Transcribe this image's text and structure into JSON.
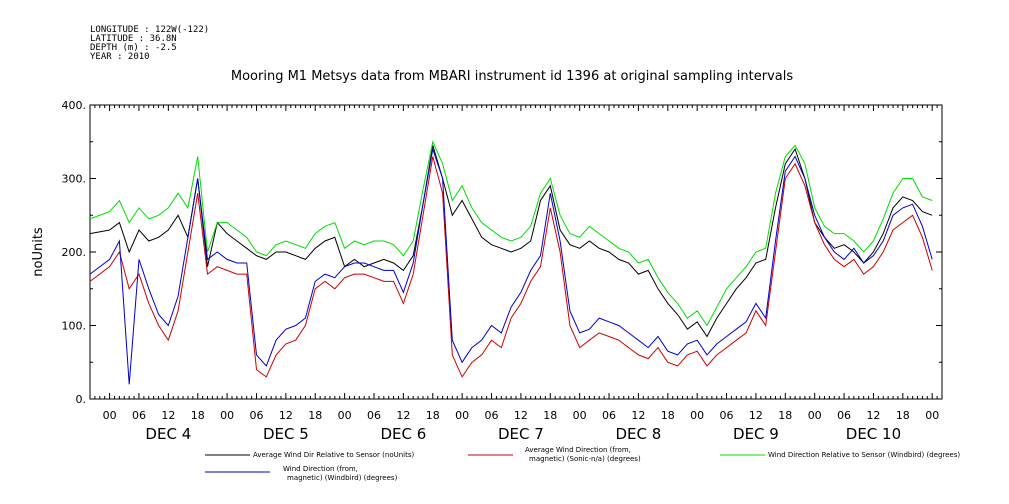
{
  "header": {
    "longitude": "LONGITUDE : 122W(-122)",
    "latitude": "LATITUDE : 36.8N",
    "depth": "DEPTH (m) : -2.5",
    "year": "YEAR : 2010"
  },
  "chart_data": {
    "type": "line",
    "title": "Mooring M1 Metsys data from MBARI instrument id 1396 at original sampling intervals",
    "ylabel": "noUnits",
    "ylim": [
      0,
      400
    ],
    "yticks": [
      "0.",
      "100.",
      "200.",
      "300.",
      "400."
    ],
    "ytick_values": [
      0,
      100,
      200,
      300,
      400
    ],
    "xlim_hours": [
      -4,
      170
    ],
    "hour_ticks": [
      "00",
      "06",
      "12",
      "18"
    ],
    "day_labels": [
      "DEC  4",
      "DEC  5",
      "DEC  6",
      "DEC  7",
      "DEC  8",
      "DEC  9",
      "DEC 10"
    ],
    "grid": false,
    "series": [
      {
        "name": "Average Wind Dir Relative to Sensor (noUnits)",
        "color": "#000000",
        "x": [
          -4,
          0,
          2,
          4,
          6,
          8,
          10,
          12,
          14,
          16,
          18,
          20,
          22,
          24,
          26,
          28,
          30,
          32,
          34,
          36,
          38,
          40,
          42,
          44,
          46,
          48,
          50,
          52,
          54,
          56,
          58,
          60,
          62,
          64,
          66,
          68,
          70,
          72,
          74,
          76,
          78,
          80,
          82,
          84,
          86,
          88,
          90,
          92,
          94,
          96,
          98,
          100,
          102,
          104,
          106,
          108,
          110,
          112,
          114,
          116,
          118,
          120,
          122,
          124,
          126,
          128,
          130,
          132,
          134,
          136,
          138,
          140,
          142,
          144,
          146,
          148,
          150,
          152,
          154,
          156,
          158,
          160,
          162,
          164,
          166,
          168
        ],
        "values": [
          225,
          230,
          240,
          200,
          230,
          215,
          220,
          230,
          250,
          220,
          300,
          180,
          240,
          225,
          215,
          205,
          195,
          190,
          200,
          200,
          195,
          190,
          205,
          215,
          220,
          180,
          190,
          180,
          185,
          190,
          185,
          175,
          195,
          265,
          345,
          300,
          250,
          270,
          245,
          220,
          210,
          205,
          200,
          205,
          215,
          270,
          290,
          230,
          210,
          205,
          215,
          205,
          200,
          190,
          185,
          170,
          175,
          150,
          130,
          115,
          95,
          105,
          85,
          110,
          130,
          150,
          165,
          185,
          190,
          260,
          320,
          340,
          300,
          240,
          220,
          205,
          210,
          200,
          185,
          200,
          225,
          260,
          275,
          270,
          255,
          250
        ]
      },
      {
        "name": "Average Wind Direction (from, magnetic) (Sonic-n/a) (degrees)",
        "color": "#cc0000",
        "x": [
          -4,
          0,
          2,
          4,
          6,
          8,
          10,
          12,
          14,
          16,
          18,
          20,
          22,
          24,
          26,
          28,
          30,
          32,
          34,
          36,
          38,
          40,
          42,
          44,
          46,
          48,
          50,
          52,
          54,
          56,
          58,
          60,
          62,
          64,
          66,
          68,
          70,
          72,
          74,
          76,
          78,
          80,
          82,
          84,
          86,
          88,
          90,
          92,
          94,
          96,
          98,
          100,
          102,
          104,
          106,
          108,
          110,
          112,
          114,
          116,
          118,
          120,
          122,
          124,
          126,
          128,
          130,
          132,
          134,
          136,
          138,
          140,
          142,
          144,
          146,
          148,
          150,
          152,
          154,
          156,
          158,
          160,
          162,
          164,
          166,
          168
        ],
        "values": [
          160,
          180,
          200,
          150,
          170,
          130,
          100,
          80,
          120,
          200,
          280,
          170,
          180,
          175,
          170,
          170,
          40,
          30,
          60,
          75,
          80,
          100,
          150,
          160,
          150,
          165,
          170,
          170,
          165,
          160,
          160,
          130,
          170,
          250,
          330,
          280,
          60,
          30,
          50,
          60,
          80,
          70,
          110,
          130,
          160,
          180,
          260,
          200,
          100,
          70,
          80,
          90,
          85,
          80,
          70,
          60,
          55,
          70,
          50,
          45,
          60,
          65,
          45,
          60,
          70,
          80,
          90,
          120,
          100,
          200,
          300,
          320,
          290,
          240,
          210,
          190,
          180,
          190,
          170,
          180,
          200,
          230,
          240,
          250,
          220,
          175
        ]
      },
      {
        "name": "Wind Direction Relative to Sensor (Windbird) (degrees)",
        "color": "#00dd00",
        "x": [
          -4,
          0,
          2,
          4,
          6,
          8,
          10,
          12,
          14,
          16,
          18,
          20,
          22,
          24,
          26,
          28,
          30,
          32,
          34,
          36,
          38,
          40,
          42,
          44,
          46,
          48,
          50,
          52,
          54,
          56,
          58,
          60,
          62,
          64,
          66,
          68,
          70,
          72,
          74,
          76,
          78,
          80,
          82,
          84,
          86,
          88,
          90,
          92,
          94,
          96,
          98,
          100,
          102,
          104,
          106,
          108,
          110,
          112,
          114,
          116,
          118,
          120,
          122,
          124,
          126,
          128,
          130,
          132,
          134,
          136,
          138,
          140,
          142,
          144,
          146,
          148,
          150,
          152,
          154,
          156,
          158,
          160,
          162,
          164,
          166,
          168
        ],
        "values": [
          245,
          255,
          270,
          240,
          260,
          245,
          250,
          260,
          280,
          260,
          330,
          200,
          240,
          240,
          230,
          220,
          200,
          195,
          210,
          215,
          210,
          205,
          225,
          235,
          240,
          205,
          215,
          210,
          215,
          215,
          210,
          195,
          215,
          285,
          350,
          320,
          270,
          290,
          260,
          240,
          230,
          220,
          215,
          220,
          235,
          280,
          300,
          250,
          225,
          220,
          235,
          225,
          215,
          205,
          200,
          185,
          190,
          165,
          145,
          130,
          110,
          120,
          100,
          125,
          150,
          165,
          180,
          200,
          205,
          280,
          330,
          345,
          320,
          260,
          235,
          225,
          225,
          215,
          200,
          215,
          245,
          280,
          300,
          300,
          275,
          270
        ]
      },
      {
        "name": "Wind Direction (from, magnetic) (Windbird) (degrees)",
        "color": "#0000cc",
        "x": [
          -4,
          0,
          2,
          4,
          6,
          8,
          10,
          12,
          14,
          16,
          18,
          20,
          22,
          24,
          26,
          28,
          30,
          32,
          34,
          36,
          38,
          40,
          42,
          44,
          46,
          48,
          50,
          52,
          54,
          56,
          58,
          60,
          62,
          64,
          66,
          68,
          70,
          72,
          74,
          76,
          78,
          80,
          82,
          84,
          86,
          88,
          90,
          92,
          94,
          96,
          98,
          100,
          102,
          104,
          106,
          108,
          110,
          112,
          114,
          116,
          118,
          120,
          122,
          124,
          126,
          128,
          130,
          132,
          134,
          136,
          138,
          140,
          142,
          144,
          146,
          148,
          150,
          152,
          154,
          156,
          158,
          160,
          162,
          164,
          166,
          168
        ],
        "values": [
          170,
          190,
          215,
          20,
          190,
          150,
          115,
          100,
          140,
          220,
          300,
          190,
          200,
          190,
          185,
          185,
          60,
          45,
          80,
          95,
          100,
          110,
          160,
          170,
          165,
          180,
          185,
          185,
          180,
          175,
          175,
          145,
          185,
          265,
          340,
          300,
          80,
          50,
          70,
          80,
          100,
          90,
          125,
          145,
          175,
          195,
          280,
          215,
          120,
          90,
          95,
          110,
          105,
          100,
          90,
          80,
          70,
          85,
          65,
          60,
          75,
          80,
          60,
          75,
          85,
          95,
          105,
          130,
          110,
          215,
          310,
          330,
          300,
          250,
          220,
          200,
          190,
          205,
          185,
          195,
          215,
          250,
          260,
          265,
          235,
          190
        ]
      }
    ]
  }
}
